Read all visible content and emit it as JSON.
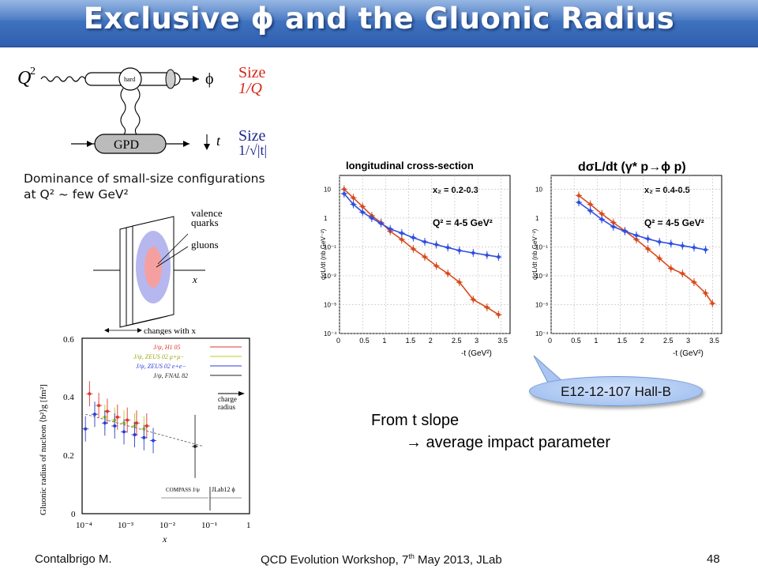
{
  "slide": {
    "title": "Exclusive ϕ and the Gluonic Radius",
    "page_number": "48"
  },
  "feynman": {
    "q2": "Q",
    "q2_sup": "2",
    "hard": "hard",
    "phi": "ϕ",
    "gpd": "GPD",
    "t": "t",
    "size_top": "Size",
    "size_top_val": "1/Q",
    "size_bottom": "Size",
    "size_bottom_val": "1/√|t|"
  },
  "dominance": {
    "line1": "Dominance of small-size configurations",
    "line2": "at Q² ~ few GeV²"
  },
  "nucleon_sketch": {
    "valence": "valence",
    "quarks": "quarks",
    "gluons": "gluons",
    "x": "x",
    "changes": "changes  with x"
  },
  "radius_plot": {
    "ylabel": "Gluonic radius of nucleon ⟨b²⟩g  [fm²]",
    "xlabel": "x",
    "legend": [
      {
        "label": "J/ψ, H1 05",
        "color": "#e0342a"
      },
      {
        "label": "J/ψ, ZEUS 02 μ+μ−",
        "color": "#b8cc1c"
      },
      {
        "label": "J/ψ, ZEUS 02 e+e−",
        "color": "#2a3fd6"
      },
      {
        "label": "J/ψ, FNAL 82",
        "color": "#222222"
      }
    ],
    "charge1": "charge",
    "charge2": "radius",
    "compass": "COMPASS J/ψ",
    "jlab": "JLab12 ϕ",
    "yticks": [
      "0.6",
      "0.4",
      "0.2",
      "0"
    ],
    "xticks": [
      "10⁻⁴",
      "10⁻³",
      "10⁻²",
      "10⁻¹",
      "1"
    ]
  },
  "panels": [
    {
      "title": "longitudinal cross-section",
      "xb": "x₂ = 0.2-0.3",
      "q2": "Q² = 4-5 GeV²",
      "ylabel": "dσL/dt (nb GeV⁻²)",
      "xlabel": "-t (GeV²)"
    },
    {
      "title": "dσL/dt (γ* p→ϕ p)",
      "xb": "x₂ = 0.4-0.5",
      "q2": "Q² = 4-5 GeV²",
      "ylabel": "dσL/dt (nb GeV⁻²)",
      "xlabel": "-t (GeV²)"
    }
  ],
  "panel_ticks": {
    "x": [
      "0",
      "0.5",
      "1",
      "1.5",
      "2",
      "2.5",
      "3",
      "3.5"
    ],
    "y": [
      "10",
      "1",
      "10⁻¹",
      "10⁻²",
      "10⁻³",
      "10⁻⁴"
    ]
  },
  "chart_data": [
    {
      "type": "scatter",
      "title": "longitudinal cross-section",
      "xlabel": "-t (GeV²)",
      "ylabel": "dσL/dt (nb GeV⁻²)",
      "xlim": [
        0,
        3.7
      ],
      "ylim": [
        0.0001,
        30
      ],
      "yscale": "log",
      "series": [
        {
          "color": "#d94a1c",
          "x": [
            0.1,
            0.3,
            0.5,
            0.7,
            0.9,
            1.1,
            1.35,
            1.6,
            1.85,
            2.1,
            2.35,
            2.6,
            2.9,
            3.2,
            3.45
          ],
          "y": [
            10,
            5,
            2.5,
            1.2,
            0.7,
            0.35,
            0.18,
            0.085,
            0.045,
            0.022,
            0.012,
            0.006,
            0.0015,
            0.0008,
            0.00045
          ]
        },
        {
          "color": "#2f4fe0",
          "x": [
            0.1,
            0.3,
            0.5,
            0.7,
            0.9,
            1.1,
            1.35,
            1.6,
            1.85,
            2.1,
            2.35,
            2.6,
            2.9,
            3.2,
            3.45
          ],
          "y": [
            7,
            3,
            1.6,
            1,
            0.65,
            0.42,
            0.3,
            0.21,
            0.15,
            0.12,
            0.095,
            0.075,
            0.062,
            0.052,
            0.045
          ]
        }
      ]
    },
    {
      "type": "scatter",
      "title": "dσL/dt (γ* p→ϕ p)",
      "xlabel": "-t (GeV²)",
      "ylabel": "dσL/dt (nb GeV⁻²)",
      "xlim": [
        0,
        3.7
      ],
      "ylim": [
        0.0001,
        30
      ],
      "yscale": "log",
      "series": [
        {
          "color": "#d94a1c",
          "x": [
            0.6,
            0.85,
            1.1,
            1.35,
            1.6,
            1.85,
            2.1,
            2.35,
            2.6,
            2.85,
            3.1,
            3.35,
            3.5
          ],
          "y": [
            6,
            3,
            1.4,
            0.7,
            0.36,
            0.18,
            0.085,
            0.04,
            0.018,
            0.012,
            0.006,
            0.0025,
            0.0011
          ]
        },
        {
          "color": "#2f4fe0",
          "x": [
            0.6,
            0.85,
            1.1,
            1.35,
            1.6,
            1.85,
            2.1,
            2.35,
            2.6,
            2.85,
            3.1,
            3.35
          ],
          "y": [
            3.5,
            1.8,
            0.9,
            0.5,
            0.35,
            0.25,
            0.19,
            0.15,
            0.13,
            0.11,
            0.095,
            0.08
          ]
        }
      ]
    },
    {
      "type": "scatter",
      "title": "",
      "xlabel": "x",
      "ylabel": "Gluonic radius of nucleon ⟨b²⟩g  [fm²]",
      "xlim": [
        0.0001,
        1
      ],
      "ylim": [
        0,
        0.6
      ],
      "xscale": "log",
      "series": [
        {
          "name": "J/ψ, H1 05",
          "color": "#e0342a",
          "x": [
            0.00015,
            0.00025,
            0.0004,
            0.0007,
            0.0012,
            0.002,
            0.0035
          ],
          "y": [
            0.41,
            0.37,
            0.35,
            0.33,
            0.32,
            0.31,
            0.3
          ]
        },
        {
          "name": "J/ψ, ZEUS 02 μ+μ−",
          "color": "#b8cc1c",
          "x": [
            0.0002,
            0.00035,
            0.0006,
            0.001,
            0.0018,
            0.003
          ],
          "y": [
            0.34,
            0.33,
            0.32,
            0.31,
            0.3,
            0.29
          ]
        },
        {
          "name": "J/ψ, ZEUS 02 e+e−",
          "color": "#2a3fd6",
          "x": [
            0.00012,
            0.0002,
            0.00035,
            0.0006,
            0.001,
            0.0018,
            0.003,
            0.005
          ],
          "y": [
            0.29,
            0.34,
            0.31,
            0.3,
            0.28,
            0.27,
            0.26,
            0.25
          ]
        },
        {
          "name": "J/ψ, FNAL 82",
          "color": "#222222",
          "x": [
            0.05
          ],
          "y": [
            0.23
          ]
        }
      ]
    }
  ],
  "callout": {
    "label": "E12-12-107 Hall-B"
  },
  "tslope": {
    "line1": "From t slope",
    "arrow": "→",
    "line2": " average impact parameter"
  },
  "footer": {
    "author": "Contalbrigo M.",
    "event_pre": "QCD Evolution Workshop, 7",
    "event_sup": "th",
    "event_post": " May 2013, JLab"
  }
}
